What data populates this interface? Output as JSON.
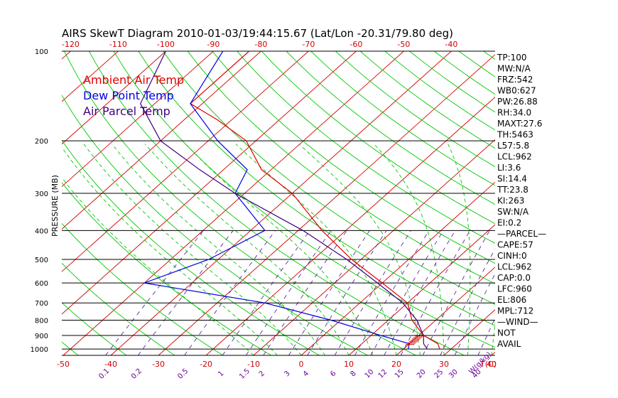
{
  "title": "AIRS SkewT Diagram 2010-01-03/19:44:15.67 (Lat/Lon -20.31/79.80 deg)",
  "colors": {
    "ambient": "#e00000",
    "dewpoint": "#0000e0",
    "parcel": "#400080",
    "isotherm": "#d00000",
    "dry_adiabat": "#00c800",
    "moist_adiabat": "#00c800",
    "mixing_ratio": "#5a2a9a",
    "wind": "#d00000"
  },
  "legend": {
    "placement": "top-left",
    "entries": [
      "Ambient Air Temp",
      "Dew Point Temp",
      "Air Parcel Temp"
    ]
  },
  "indices": [
    "TP:100",
    "MW:N/A",
    "FRZ:542",
    "WB0:627",
    "PW:26.88",
    "RH:34.0",
    "MAXT:27.6",
    "TH:5463",
    "L57:5.8",
    "LCL:962",
    "LI:3.6",
    "SI:14.4",
    "TT:23.8",
    "KI:263",
    "SW:N/A",
    "EI:0.2",
    "—PARCEL—",
    "CAPE:57",
    "CINH:0",
    "LCL:962",
    "CAP:0.0",
    "LFC:960",
    "EL:806",
    "MPL:712",
    "—WIND—",
    "NOT",
    "AVAIL"
  ],
  "chart_data": {
    "type": "line",
    "title": "AIRS SkewT Diagram 2010-01-03/19:44:15.67 (Lat/Lon -20.31/79.80 deg)",
    "ylabel": "PRESSURE (MB)",
    "xlabel": "T(C)",
    "mixing_ratio_unit": "W(g/kg)",
    "y_scale": "log",
    "ylim": [
      1050,
      100
    ],
    "pressure_ticks": [
      100,
      200,
      300,
      400,
      500,
      600,
      700,
      800,
      900,
      1000
    ],
    "top_temp_ticks": [
      -120,
      -110,
      -100,
      -90,
      -80,
      -70,
      -60,
      -50,
      -40
    ],
    "bottom_temp_ticks": [
      -50,
      -40,
      -30,
      -20,
      -10,
      0,
      10,
      20,
      30,
      40
    ],
    "mixing_ratio_ticks": [
      {
        "label": "0.1",
        "value": 0.1
      },
      {
        "label": "0.2",
        "value": 0.2
      },
      {
        "label": "0.5",
        "value": 0.5
      },
      {
        "label": "1",
        "value": 1
      },
      {
        "label": "1.5",
        "value": 1.5
      },
      {
        "label": "2",
        "value": 2
      },
      {
        "label": "3",
        "value": 3
      },
      {
        "label": "4",
        "value": 4
      },
      {
        "label": "6",
        "value": 6
      },
      {
        "label": "8",
        "value": 8
      },
      {
        "label": "10",
        "value": 10
      },
      {
        "label": "12",
        "value": 12
      },
      {
        "label": "15",
        "value": 15
      },
      {
        "label": "20",
        "value": 20
      },
      {
        "label": "25",
        "value": 25
      },
      {
        "label": "30",
        "value": 30
      },
      {
        "label": "40",
        "value": 40
      }
    ],
    "series": [
      {
        "name": "Ambient Air Temp",
        "points": [
          {
            "p": 100,
            "t": -82.5
          },
          {
            "p": 150,
            "t": -82.5
          },
          {
            "p": 170,
            "t": -73
          },
          {
            "p": 200,
            "t": -62
          },
          {
            "p": 250,
            "t": -52
          },
          {
            "p": 300,
            "t": -40
          },
          {
            "p": 400,
            "t": -25
          },
          {
            "p": 500,
            "t": -12
          },
          {
            "p": 600,
            "t": 0
          },
          {
            "p": 700,
            "t": 10
          },
          {
            "p": 800,
            "t": 15
          },
          {
            "p": 900,
            "t": 21
          },
          {
            "p": 960,
            "t": 26
          },
          {
            "p": 1000,
            "t": 27.6
          }
        ]
      },
      {
        "name": "Dew Point Temp",
        "points": [
          {
            "p": 100,
            "t": -88
          },
          {
            "p": 150,
            "t": -82.5
          },
          {
            "p": 200,
            "t": -68
          },
          {
            "p": 250,
            "t": -55
          },
          {
            "p": 300,
            "t": -52
          },
          {
            "p": 400,
            "t": -37
          },
          {
            "p": 500,
            "t": -42
          },
          {
            "p": 600,
            "t": -50
          },
          {
            "p": 700,
            "t": -20
          },
          {
            "p": 800,
            "t": -2
          },
          {
            "p": 900,
            "t": 12
          },
          {
            "p": 960,
            "t": 20
          },
          {
            "p": 1000,
            "t": 21
          }
        ]
      },
      {
        "name": "Air Parcel Temp",
        "points": [
          {
            "p": 100,
            "t": -100
          },
          {
            "p": 150,
            "t": -93
          },
          {
            "p": 200,
            "t": -80
          },
          {
            "p": 250,
            "t": -65
          },
          {
            "p": 300,
            "t": -52
          },
          {
            "p": 400,
            "t": -29
          },
          {
            "p": 500,
            "t": -13
          },
          {
            "p": 600,
            "t": -1
          },
          {
            "p": 700,
            "t": 9
          },
          {
            "p": 800,
            "t": 16
          },
          {
            "p": 900,
            "t": 21
          },
          {
            "p": 960,
            "t": 23
          },
          {
            "p": 1000,
            "t": 25
          }
        ]
      }
    ]
  }
}
